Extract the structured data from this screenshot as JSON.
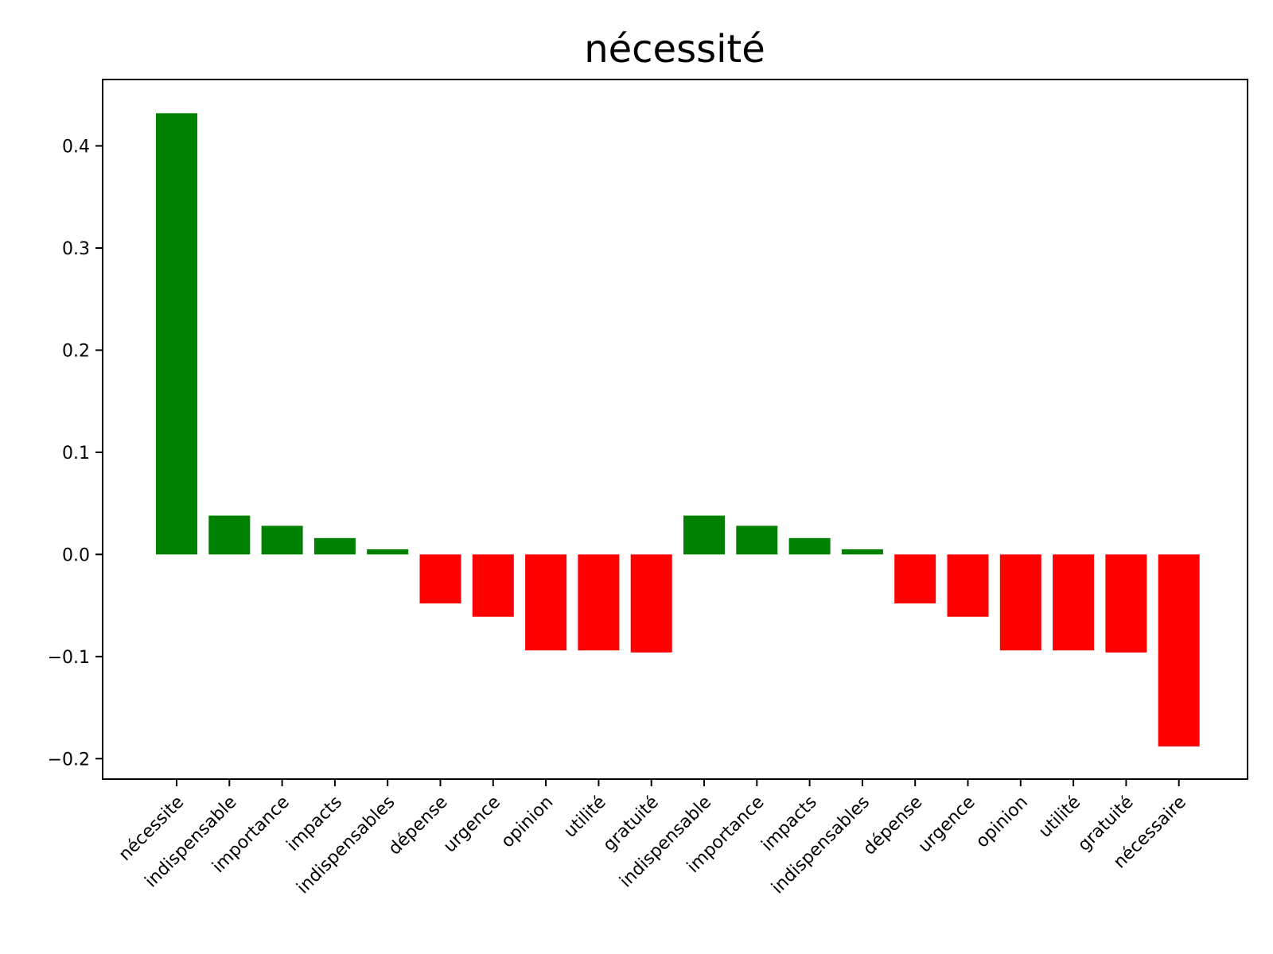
{
  "chart_data": {
    "type": "bar",
    "title": "nécessité",
    "xlabel": "",
    "ylabel": "",
    "categories": [
      "nécessite",
      "indispensable",
      "importance",
      "impacts",
      "indispensables",
      "dépense",
      "urgence",
      "opinion",
      "utilité",
      "gratuité",
      "indispensable",
      "importance",
      "impacts",
      "indispensables",
      "dépense",
      "urgence",
      "opinion",
      "utilité",
      "gratuité",
      "nécessaire"
    ],
    "values": [
      0.432,
      0.038,
      0.028,
      0.016,
      0.005,
      -0.048,
      -0.061,
      -0.094,
      -0.094,
      -0.096,
      0.038,
      0.028,
      0.016,
      0.005,
      -0.048,
      -0.061,
      -0.094,
      -0.094,
      -0.096,
      -0.188
    ],
    "ylim": [
      -0.22,
      0.465
    ],
    "yticks": [
      -0.2,
      -0.1,
      0.0,
      0.1,
      0.2,
      0.3,
      0.4
    ],
    "ytick_labels": [
      "−0.2",
      "−0.1",
      "0.0",
      "0.1",
      "0.2",
      "0.3",
      "0.4"
    ],
    "grid": false,
    "colors": {
      "positive": "#008000",
      "negative": "#ff0000",
      "axis": "#000000"
    }
  }
}
